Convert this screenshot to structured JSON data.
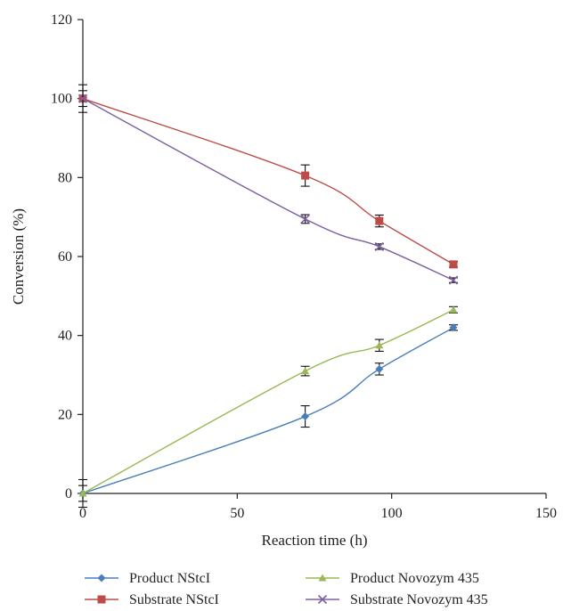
{
  "chart_data": {
    "type": "line",
    "title": "",
    "xlabel": "Reaction time (h)",
    "ylabel": "Conversion (%)",
    "xlim": [
      0,
      150
    ],
    "ylim": [
      0,
      120
    ],
    "xticks": [
      "0",
      "50",
      "100",
      "150"
    ],
    "yticks": [
      "0",
      "20",
      "40",
      "60",
      "80",
      "100",
      "120"
    ],
    "grid": false,
    "legend_position": "bottom",
    "x": [
      0,
      72,
      96,
      120
    ],
    "series": [
      {
        "name": "Product NStcI",
        "color": "#4a7ebb",
        "marker": "diamond",
        "values": [
          0,
          19.5,
          31.5,
          42
        ],
        "errors": [
          2.0,
          2.7,
          1.5,
          0.7
        ]
      },
      {
        "name": "Substrate NStcI",
        "color": "#be4b48",
        "marker": "square",
        "values": [
          100,
          80.5,
          69,
          58
        ],
        "errors": [
          3.5,
          2.7,
          1.5,
          0.7
        ]
      },
      {
        "name": "Product Novozym 435",
        "color": "#98b954",
        "marker": "triangle",
        "values": [
          0,
          31,
          37.5,
          46.5
        ],
        "errors": [
          3.5,
          1.2,
          1.5,
          0.8
        ]
      },
      {
        "name": "Substrate Novozym 435",
        "color": "#7d60a0",
        "marker": "x",
        "values": [
          100,
          69.5,
          62.5,
          54
        ],
        "errors": [
          2.0,
          1.1,
          0.7,
          0.6
        ]
      }
    ]
  }
}
